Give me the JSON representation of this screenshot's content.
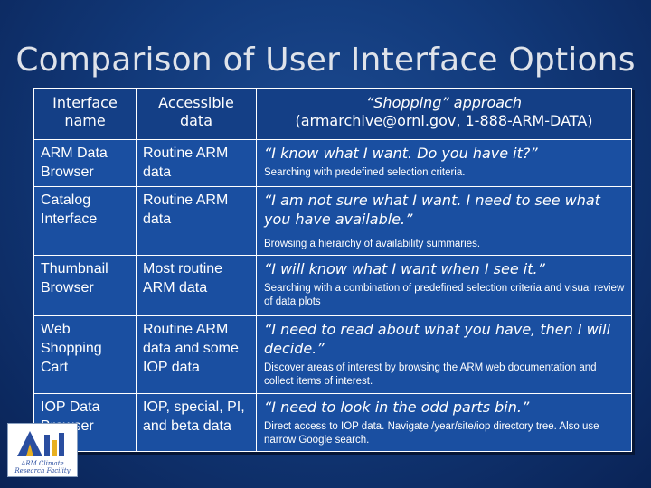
{
  "slide": {
    "title": "Comparison of User Interface Options"
  },
  "table": {
    "headers": {
      "col1_line1": "Interface",
      "col1_line2": "name",
      "col2_line1": "Accessible",
      "col2_line2": "data",
      "col3_shopping": "“Shopping” approach",
      "col3_open": "(",
      "col3_email": "armarchive@ornl.gov",
      "col3_rest": ", 1-888-ARM-DATA)"
    },
    "rows": [
      {
        "name": "ARM Data Browser",
        "data": "Routine ARM data",
        "quote": "“I know what I want. Do you have it?”",
        "desc": "Searching with predefined selection criteria."
      },
      {
        "name": "Catalog Interface",
        "data": "Routine ARM data",
        "quote": "“I am not sure what I want. I need to see what you have available.”",
        "desc": "Browsing a hierarchy of availability summaries."
      },
      {
        "name": "Thumbnail Browser",
        "data": "Most routine ARM data",
        "quote": "“I will know what I want when I see it.”",
        "desc": "Searching with a combination of predefined selection criteria and visual review of data plots"
      },
      {
        "name": "Web Shopping Cart",
        "data": "Routine ARM data and some IOP data",
        "quote": "“I need to read about what you have, then I will decide.”",
        "desc": "Discover areas of interest by browsing the ARM web documentation and collect items of interest."
      },
      {
        "name": "IOP Data Browser",
        "data": "IOP, special, PI, and beta data",
        "quote": "“I need to look in the odd parts bin.”",
        "desc": "Direct access to IOP data. Navigate /year/site/iop directory tree.  Also use narrow Google search."
      }
    ]
  },
  "logo": {
    "text_line1": "ARM Climate",
    "text_line2": "Research Facility",
    "color_blue": "#2a4ea0",
    "color_gold": "#e8b020"
  }
}
